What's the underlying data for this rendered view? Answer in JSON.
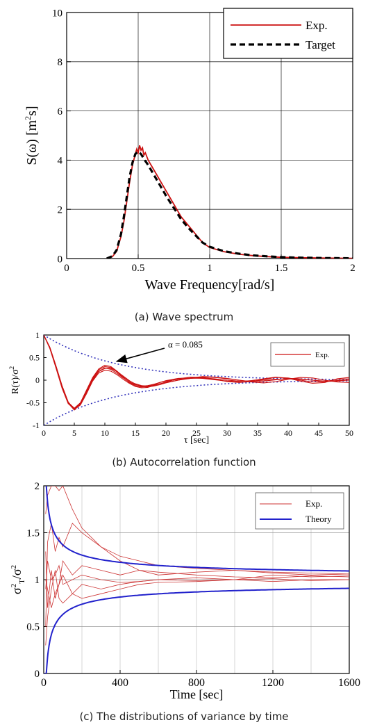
{
  "chart_data": [
    {
      "id": "a",
      "type": "line",
      "caption": "(a) Wave spectrum",
      "xlabel": "Wave Frequency[rad/s]",
      "ylabel_main": "S(ω) [m",
      "ylabel_sup": "2",
      "ylabel_end": "s]",
      "xlim": [
        0,
        2
      ],
      "ylim": [
        0,
        10
      ],
      "xticks": [
        "0",
        "0.5",
        "1",
        "1.5",
        "2"
      ],
      "yticks": [
        "0",
        "2",
        "4",
        "6",
        "8",
        "10"
      ],
      "grid": true,
      "legend_position": "top-right",
      "series": [
        {
          "name": "Exp.",
          "color": "#cc1111",
          "style": "solid",
          "x": [
            0.28,
            0.32,
            0.35,
            0.38,
            0.4,
            0.42,
            0.44,
            0.46,
            0.48,
            0.49,
            0.5,
            0.51,
            0.52,
            0.53,
            0.54,
            0.55,
            0.57,
            0.6,
            0.63,
            0.66,
            0.7,
            0.75,
            0.8,
            0.85,
            0.9,
            0.95,
            1.0,
            1.1,
            1.2,
            1.3,
            1.4,
            1.5,
            1.6,
            1.8,
            2.0
          ],
          "y": [
            0.0,
            0.08,
            0.3,
            0.9,
            1.5,
            2.3,
            3.1,
            3.8,
            4.25,
            4.45,
            4.3,
            4.6,
            4.4,
            4.5,
            4.2,
            4.3,
            4.0,
            3.7,
            3.4,
            3.1,
            2.7,
            2.2,
            1.7,
            1.35,
            1.0,
            0.65,
            0.45,
            0.28,
            0.18,
            0.12,
            0.08,
            0.05,
            0.04,
            0.02,
            0.01
          ]
        },
        {
          "name": "Target",
          "color": "#000000",
          "style": "dashed",
          "x": [
            0.28,
            0.32,
            0.35,
            0.38,
            0.4,
            0.42,
            0.44,
            0.46,
            0.48,
            0.5,
            0.52,
            0.54,
            0.57,
            0.6,
            0.63,
            0.66,
            0.7,
            0.75,
            0.8,
            0.85,
            0.9,
            0.95,
            1.0,
            1.1,
            1.2,
            1.3,
            1.4,
            1.5,
            1.6,
            1.8,
            2.0
          ],
          "y": [
            0.0,
            0.1,
            0.35,
            1.0,
            1.7,
            2.5,
            3.3,
            3.9,
            4.25,
            4.35,
            4.25,
            4.05,
            3.8,
            3.5,
            3.2,
            2.9,
            2.5,
            2.05,
            1.6,
            1.25,
            0.95,
            0.65,
            0.48,
            0.3,
            0.2,
            0.13,
            0.09,
            0.06,
            0.04,
            0.02,
            0.01
          ]
        }
      ]
    },
    {
      "id": "b",
      "type": "line",
      "caption": "(b) Autocorrelation function",
      "xlabel": "τ [sec]",
      "ylabel_main": "R(τ)/σ",
      "ylabel_sup": "2",
      "xlim": [
        0,
        50
      ],
      "ylim": [
        -1,
        1
      ],
      "xticks": [
        "0",
        "5",
        "10",
        "15",
        "20",
        "25",
        "30",
        "35",
        "40",
        "45",
        "50"
      ],
      "yticks": [
        "-1",
        "-0.5",
        "0",
        "0.5",
        "1"
      ],
      "grid": false,
      "legend_position": "top-right",
      "annotation": "α = 0.085",
      "annotation_target": [
        11.5,
        0.37
      ],
      "envelope": {
        "alpha": 0.085,
        "color": "#3333bb",
        "style": "dotted"
      },
      "series": [
        {
          "name": "Exp.",
          "color": "#cc1111",
          "x": [
            0,
            1,
            2,
            3,
            4,
            5,
            6,
            7,
            8,
            9,
            10,
            11,
            12,
            13,
            14,
            15,
            16,
            17,
            18,
            19,
            20,
            22,
            24,
            26,
            28,
            30,
            32,
            34,
            36,
            38,
            40,
            42,
            44,
            46,
            48,
            50
          ],
          "y": [
            1.0,
            0.72,
            0.3,
            -0.15,
            -0.5,
            -0.64,
            -0.52,
            -0.25,
            0.02,
            0.2,
            0.27,
            0.24,
            0.15,
            0.05,
            -0.04,
            -0.1,
            -0.13,
            -0.12,
            -0.09,
            -0.05,
            -0.02,
            0.02,
            0.04,
            0.05,
            0.03,
            0.0,
            -0.02,
            -0.02,
            0.0,
            0.02,
            0.03,
            0.02,
            0.0,
            -0.02,
            -0.01,
            0.0
          ]
        },
        {
          "name": "",
          "color": "#cc1111",
          "x": [
            0,
            1,
            2,
            3,
            4,
            5,
            6,
            7,
            8,
            9,
            10,
            11,
            12,
            13,
            14,
            15,
            16,
            17,
            18,
            19,
            20,
            22,
            24,
            26,
            28,
            30,
            32,
            34,
            36,
            38,
            40,
            42,
            44,
            46,
            48,
            50
          ],
          "y": [
            1.0,
            0.7,
            0.27,
            -0.18,
            -0.52,
            -0.63,
            -0.5,
            -0.22,
            0.06,
            0.25,
            0.33,
            0.3,
            0.2,
            0.08,
            -0.02,
            -0.08,
            -0.12,
            -0.13,
            -0.11,
            -0.08,
            -0.05,
            0.0,
            0.04,
            0.07,
            0.06,
            0.03,
            0.0,
            -0.03,
            -0.02,
            0.01,
            0.04,
            0.03,
            0.0,
            -0.03,
            -0.02,
            0.01
          ]
        },
        {
          "name": "",
          "color": "#cc1111",
          "x": [
            0,
            1,
            2,
            3,
            4,
            5,
            6,
            7,
            8,
            9,
            10,
            11,
            12,
            13,
            14,
            15,
            16,
            17,
            18,
            19,
            20,
            22,
            24,
            26,
            28,
            30,
            32,
            34,
            36,
            38,
            40,
            42,
            44,
            46,
            48,
            50
          ],
          "y": [
            1.0,
            0.73,
            0.32,
            -0.12,
            -0.48,
            -0.65,
            -0.55,
            -0.3,
            -0.02,
            0.16,
            0.22,
            0.2,
            0.12,
            0.02,
            -0.07,
            -0.14,
            -0.17,
            -0.16,
            -0.12,
            -0.08,
            -0.04,
            0.03,
            0.07,
            0.06,
            0.02,
            -0.03,
            -0.05,
            -0.03,
            0.02,
            0.06,
            0.05,
            0.0,
            -0.04,
            -0.03,
            0.02,
            0.03
          ]
        },
        {
          "name": "",
          "color": "#cc1111",
          "x": [
            0,
            1,
            2,
            3,
            4,
            5,
            6,
            7,
            8,
            9,
            10,
            11,
            12,
            13,
            14,
            15,
            16,
            17,
            18,
            19,
            20,
            22,
            24,
            26,
            28,
            30,
            32,
            34,
            36,
            38,
            40,
            42,
            44,
            46,
            48,
            50
          ],
          "y": [
            1.0,
            0.71,
            0.29,
            -0.16,
            -0.51,
            -0.66,
            -0.53,
            -0.27,
            0.0,
            0.19,
            0.26,
            0.26,
            0.19,
            0.09,
            -0.01,
            -0.09,
            -0.14,
            -0.15,
            -0.13,
            -0.1,
            -0.06,
            0.0,
            0.05,
            0.08,
            0.07,
            0.04,
            0.0,
            -0.04,
            -0.06,
            -0.03,
            0.02,
            0.06,
            0.05,
            0.0,
            -0.04,
            -0.05
          ]
        },
        {
          "name": "",
          "color": "#cc1111",
          "x": [
            0,
            1,
            2,
            3,
            4,
            5,
            6,
            7,
            8,
            9,
            10,
            11,
            12,
            13,
            14,
            15,
            16,
            17,
            18,
            19,
            20,
            22,
            24,
            26,
            28,
            30,
            32,
            34,
            36,
            38,
            40,
            42,
            44,
            46,
            48,
            50
          ],
          "y": [
            1.0,
            0.72,
            0.31,
            -0.14,
            -0.49,
            -0.62,
            -0.5,
            -0.24,
            0.04,
            0.23,
            0.3,
            0.28,
            0.18,
            0.06,
            -0.05,
            -0.12,
            -0.15,
            -0.14,
            -0.1,
            -0.05,
            -0.01,
            0.04,
            0.05,
            0.04,
            0.01,
            -0.02,
            -0.03,
            -0.01,
            0.03,
            0.07,
            0.04,
            -0.02,
            -0.07,
            -0.05,
            0.03,
            0.06
          ]
        }
      ]
    },
    {
      "id": "c",
      "type": "line",
      "caption": "(c) The distributions of variance by time",
      "xlabel": "Time [sec]",
      "ylabel_main": "σ",
      "ylabel_sub": "T",
      "ylabel_sup": "2",
      "ylabel_end": "/σ",
      "ylabel_sup2": "2",
      "xlim": [
        0,
        1600
      ],
      "ylim": [
        0,
        2
      ],
      "xticks": [
        "0",
        "400",
        "800",
        "1200",
        "1600"
      ],
      "yticks": [
        "0",
        "0.5",
        "1",
        "1.5",
        "2"
      ],
      "grid": true,
      "legend_position": "top-right",
      "theory_series": {
        "name": "Theory",
        "color": "#2222cc",
        "k": 3.7,
        "exponent": 0.5
      },
      "series": [
        {
          "name": "Exp.",
          "color": "#cc3333",
          "x": [
            10,
            20,
            40,
            60,
            80,
            100,
            150,
            200,
            300,
            400,
            500,
            600,
            800,
            1000,
            1200,
            1400,
            1600
          ],
          "y": [
            1.3,
            0.7,
            1.1,
            0.8,
            0.95,
            1.2,
            1.05,
            1.15,
            1.1,
            1.05,
            1.1,
            1.08,
            1.05,
            1.03,
            1.02,
            1.04,
            1.03
          ]
        },
        {
          "name": "",
          "color": "#cc3333",
          "x": [
            10,
            20,
            40,
            60,
            80,
            100,
            150,
            200,
            300,
            400,
            500,
            600,
            800,
            1000,
            1200,
            1400,
            1600
          ],
          "y": [
            0.5,
            1.4,
            1.6,
            1.3,
            1.45,
            1.35,
            1.6,
            1.5,
            1.35,
            1.2,
            1.1,
            1.05,
            1.08,
            1.1,
            1.07,
            1.05,
            1.06
          ]
        },
        {
          "name": "",
          "color": "#cc3333",
          "x": [
            10,
            20,
            40,
            60,
            80,
            100,
            150,
            200,
            300,
            400,
            500,
            600,
            800,
            1000,
            1200,
            1400,
            1600
          ],
          "y": [
            1.7,
            1.9,
            2.0,
            2.0,
            1.95,
            2.0,
            1.75,
            1.55,
            1.35,
            1.25,
            1.2,
            1.15,
            1.12,
            1.1,
            1.08,
            1.07,
            1.06
          ]
        },
        {
          "name": "",
          "color": "#cc3333",
          "x": [
            10,
            20,
            40,
            60,
            80,
            100,
            150,
            200,
            300,
            400,
            500,
            600,
            800,
            1000,
            1200,
            1400,
            1600
          ],
          "y": [
            0.3,
            0.6,
            0.9,
            1.1,
            0.8,
            0.75,
            0.85,
            0.95,
            0.9,
            0.95,
            0.98,
            1.0,
            1.02,
            1.0,
            1.05,
            1.03,
            1.04
          ]
        },
        {
          "name": "",
          "color": "#cc3333",
          "x": [
            10,
            20,
            40,
            60,
            80,
            100,
            150,
            200,
            300,
            400,
            500,
            600,
            800,
            1000,
            1200,
            1400,
            1600
          ],
          "y": [
            1.0,
            0.9,
            0.7,
            0.85,
            0.95,
            1.05,
            0.85,
            0.8,
            0.85,
            0.9,
            0.95,
            0.97,
            0.98,
            1.0,
            1.01,
            0.99,
            1.0
          ]
        },
        {
          "name": "",
          "color": "#cc3333",
          "x": [
            10,
            20,
            40,
            60,
            80,
            100,
            150,
            200,
            300,
            400,
            500,
            600,
            800,
            1000,
            1200,
            1400,
            1600
          ],
          "y": [
            0.9,
            1.2,
            1.0,
            1.05,
            1.15,
            0.95,
            1.0,
            1.05,
            1.0,
            0.97,
            0.98,
            1.0,
            0.99,
            1.0,
            0.98,
            1.0,
            1.0
          ]
        }
      ]
    }
  ]
}
